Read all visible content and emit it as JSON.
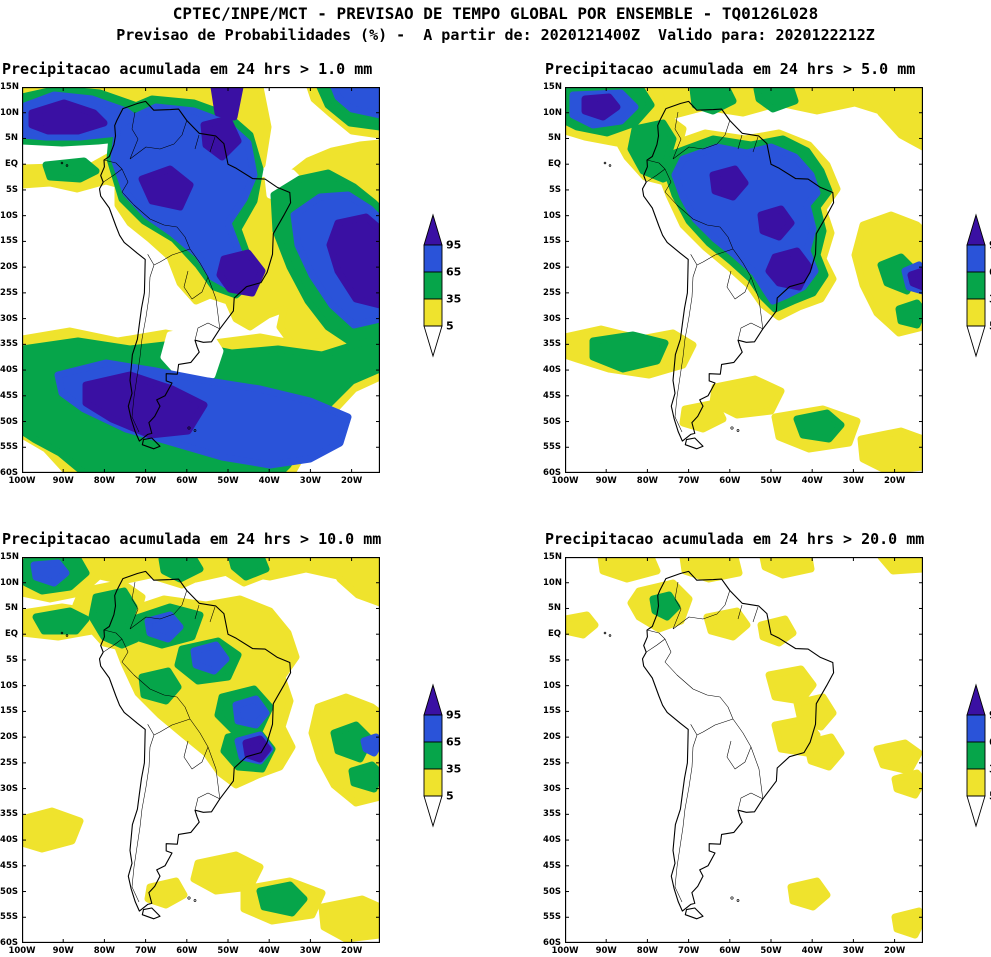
{
  "header": {
    "line1": "CPTEC/INPE/MCT - PREVISAO DE TEMPO GLOBAL POR ENSEMBLE - TQ0126L028",
    "line2": "Previsao de Probabilidades (%) -  A partir de: 2020121400Z  Valido para: 2020122212Z"
  },
  "axes": {
    "lat_ticks": [
      "15N",
      "10N",
      "5N",
      "EQ",
      "5S",
      "10S",
      "15S",
      "20S",
      "25S",
      "30S",
      "35S",
      "40S",
      "45S",
      "50S",
      "55S",
      "60S"
    ],
    "lon_ticks": [
      "100W",
      "90W",
      "80W",
      "70W",
      "60W",
      "50W",
      "40W",
      "30W",
      "20W"
    ]
  },
  "legend": {
    "levels": [
      "95",
      "65",
      "35",
      "5"
    ],
    "units": "%",
    "orientation": "vertical",
    "colors": {
      "gt95": "#3A10A3",
      "p65_95": "#2A53D9",
      "p35_65": "#06A54A",
      "p5_35": "#EFE32D",
      "lt5": "#FFFFFF"
    }
  },
  "chart_data": [
    {
      "type": "heatmap",
      "title": "Precipitacao acumulada em 24 hrs > 1.0 mm",
      "threshold_mm": 1.0,
      "units": "%",
      "levels_percent": [
        5,
        35,
        65,
        95
      ],
      "extent": {
        "lon": [
          "100W",
          "13W"
        ],
        "lat": [
          "15N",
          "60S"
        ]
      },
      "probability_regions": {
        "gt95": "Colombia-Venezuela border region, central Amazon, spots near northern edge, southeast Brazil near 45W/22S, eastern Atlantic edge 25S-35S, southern Chile and Patagonia 45S-55S",
        "p65_95": "broad band across northern South America and the Amazon basin, SE Brazil, diagonal SW-Atlantic band toward 20W, circumpolar band 42S-57S",
        "p35_65": "rims of all blue areas, equatorial Pacific strip near 5N-EQ, margins of the southern band",
        "p5_35": "outer fringes, NE-Brazil-to-subtropical-Atlantic diagonal band, 35S-40S band across Argentina and adjacent oceans",
        "lt5": "subtropical east Pacific, NE Brazil tip, central Argentina gap, far SW corner"
      }
    },
    {
      "type": "heatmap",
      "title": "Precipitacao acumulada em 24 hrs > 5.0 mm",
      "threshold_mm": 5.0,
      "units": "%",
      "levels_percent": [
        5,
        35,
        65,
        95
      ],
      "extent": {
        "lon": [
          "100W",
          "13W"
        ],
        "lat": [
          "15N",
          "60S"
        ]
      },
      "probability_regions": {
        "gt95": "small cores at top-left corner, central Amazon spots, southeast Brazil, right edge near 30S",
        "p65_95": "large central and western Amazon mass extending to SE Brazil",
        "p35_65": "most of the Amazon basin, NW Colombia coast, patches along the northern edge, small spots on the SE diagonal and in the south",
        "p5_35": "thin band along the northern edge, Amazon fringe, subtropical Atlantic diagonal band, left edge near 42S, scattered southern patches",
        "lt5": "most ocean areas and southern South America"
      }
    },
    {
      "type": "heatmap",
      "title": "Precipitacao acumulada em 24 hrs > 10.0 mm",
      "threshold_mm": 10.0,
      "units": "%",
      "levels_percent": [
        5,
        35,
        65,
        95
      ],
      "extent": {
        "lon": [
          "100W",
          "13W"
        ],
        "lat": [
          "15N",
          "60S"
        ]
      },
      "probability_regions": {
        "gt95": "single tiny spot over southeast Brazil",
        "p65_95": "small cores over the Amazon and SE Brazil, top-left and right-edge specks",
        "p35_65": "scattered patches over the Amazon basin, NW Colombia, northern-edge spots, slivers on the Atlantic diagonal, one southern spot",
        "p5_35": "thin northern-edge band, broad Amazon fringe, Atlantic diagonal band, scattered southern patches",
        "lt5": "most of the domain"
      }
    },
    {
      "type": "heatmap",
      "title": "Precipitacao acumulada em 24 hrs > 20.0 mm",
      "threshold_mm": 20.0,
      "units": "%",
      "levels_percent": [
        5,
        35,
        65,
        95
      ],
      "extent": {
        "lon": [
          "100W",
          "13W"
        ],
        "lat": [
          "15N",
          "60S"
        ]
      },
      "probability_regions": {
        "gt95": "none",
        "p65_95": "none",
        "p35_65": "tiny speck over NW Colombia",
        "p5_35": "isolated patches: northern edge, NW Colombia, central Amazon, central and SE Brazil, subtropical Atlantic streaks, a few southern specks",
        "lt5": "almost the entire domain"
      }
    }
  ]
}
